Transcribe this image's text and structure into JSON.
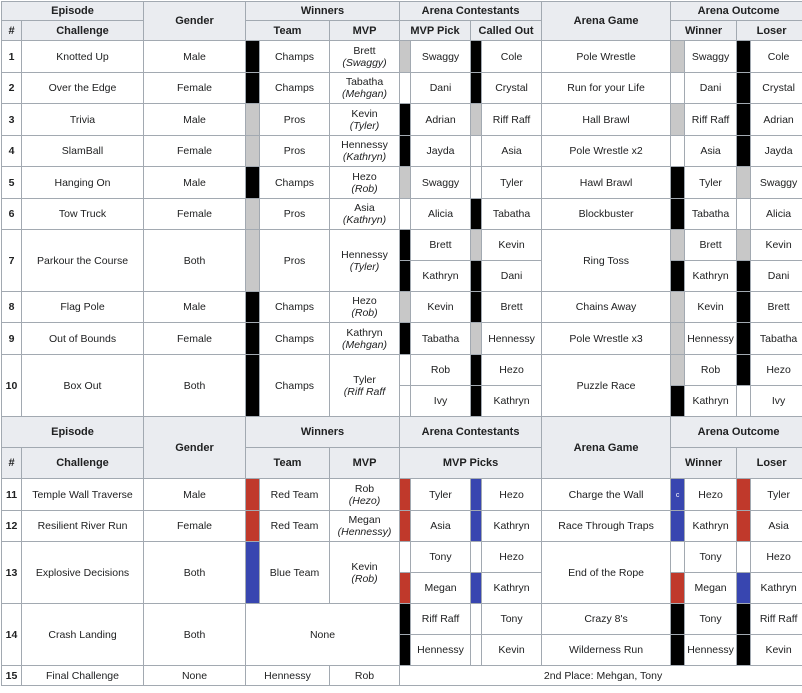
{
  "header1": {
    "episode": "Episode",
    "gender": "Gender",
    "winners": "Winners",
    "arena_contestants": "Arena Contestants",
    "arena_game": "Arena Game",
    "arena_outcome": "Arena Outcome",
    "num": "#",
    "challenge": "Challenge",
    "team": "Team",
    "mvp": "MVP",
    "mvp_pick": "MVP Pick",
    "called_out": "Called Out",
    "winner": "Winner",
    "loser": "Loser"
  },
  "header2": {
    "episode": "Episode",
    "gender": "Gender",
    "winners": "Winners",
    "arena_contestants": "Arena Contestants",
    "arena_game": "Arena Game",
    "arena_outcome": "Arena Outcome",
    "num": "#",
    "challenge": "Challenge",
    "team": "Team",
    "mvp": "MVP",
    "mvp_picks": "MVP Picks",
    "winner": "Winner",
    "loser": "Loser"
  },
  "rows": {
    "r1": {
      "num": "1",
      "challenge": "Knotted Up",
      "gender": "Male",
      "team": "Champs",
      "mvp": "Brett",
      "mvp_sub": "(Swaggy)",
      "pick": "Swaggy",
      "called": "Cole",
      "game": "Pole Wrestle",
      "winner": "Swaggy",
      "loser": "Cole"
    },
    "r2": {
      "num": "2",
      "challenge": "Over the Edge",
      "gender": "Female",
      "team": "Champs",
      "mvp": "Tabatha",
      "mvp_sub": "(Mehgan)",
      "pick": "Dani",
      "called": "Crystal",
      "game": "Run for your Life",
      "winner": "Dani",
      "loser": "Crystal"
    },
    "r3": {
      "num": "3",
      "challenge": "Trivia",
      "gender": "Male",
      "team": "Pros",
      "mvp": "Kevin",
      "mvp_sub": "(Tyler)",
      "pick": "Adrian",
      "called": "Riff Raff",
      "game": "Hall Brawl",
      "winner": "Riff Raff",
      "loser": "Adrian"
    },
    "r4": {
      "num": "4",
      "challenge": "SlamBall",
      "gender": "Female",
      "team": "Pros",
      "mvp": "Hennessy",
      "mvp_sub": "(Kathryn)",
      "pick": "Jayda",
      "called": "Asia",
      "game": "Pole Wrestle x2",
      "winner": "Asia",
      "loser": "Jayda"
    },
    "r5": {
      "num": "5",
      "challenge": "Hanging On",
      "gender": "Male",
      "team": "Champs",
      "mvp": "Hezo",
      "mvp_sub": "(Rob)",
      "pick": "Swaggy",
      "called": "Tyler",
      "game": "Hawl Brawl",
      "winner": "Tyler",
      "loser": "Swaggy"
    },
    "r6": {
      "num": "6",
      "challenge": "Tow Truck",
      "gender": "Female",
      "team": "Pros",
      "mvp": "Asia",
      "mvp_sub": "(Kathryn)",
      "pick": "Alicia",
      "called": "Tabatha",
      "game": "Blockbuster",
      "winner": "Tabatha",
      "loser": "Alicia"
    },
    "r7": {
      "num": "7",
      "challenge": "Parkour the Course",
      "gender": "Both",
      "team": "Pros",
      "mvp": "Hennessy",
      "mvp_sub": "(Tyler)",
      "pick_a": "Brett",
      "called_a": "Kevin",
      "pick_b": "Kathryn",
      "called_b": "Dani",
      "game": "Ring Toss",
      "winner_a": "Brett",
      "loser_a": "Kevin",
      "winner_b": "Kathryn",
      "loser_b": "Dani"
    },
    "r8": {
      "num": "8",
      "challenge": "Flag Pole",
      "gender": "Male",
      "team": "Champs",
      "mvp": "Hezo",
      "mvp_sub": "(Rob)",
      "pick": "Kevin",
      "called": "Brett",
      "game": "Chains Away",
      "winner": "Kevin",
      "loser": "Brett"
    },
    "r9": {
      "num": "9",
      "challenge": "Out of Bounds",
      "gender": "Female",
      "team": "Champs",
      "mvp": "Kathryn",
      "mvp_sub": "(Mehgan)",
      "pick": "Tabatha",
      "called": "Hennessy",
      "game": "Pole Wrestle x3",
      "winner": "Hennessy",
      "loser": "Tabatha"
    },
    "r10": {
      "num": "10",
      "challenge": "Box Out",
      "gender": "Both",
      "team": "Champs",
      "mvp": "Tyler",
      "mvp_sub": "(Riff Raff",
      "pick_a": "Rob",
      "called_a": "Hezo",
      "pick_b": "Ivy",
      "called_b": "Kathryn",
      "game": "Puzzle Race",
      "winner_a": "Rob",
      "loser_a": "Hezo",
      "winner_b": "Kathryn",
      "loser_b": "Ivy"
    },
    "r11": {
      "num": "11",
      "challenge": "Temple Wall Traverse",
      "gender": "Male",
      "team": "Red Team",
      "mvp": "Rob",
      "mvp_sub": "(Hezo)",
      "pick_a": "Tyler",
      "pick_b": "Hezo",
      "game": "Charge the Wall",
      "mark": "c",
      "winner": "Hezo",
      "loser": "Tyler"
    },
    "r12": {
      "num": "12",
      "challenge": "Resilient River Run",
      "gender": "Female",
      "team": "Red Team",
      "mvp": "Megan",
      "mvp_sub": "(Hennessy)",
      "pick_a": "Asia",
      "pick_b": "Kathryn",
      "game": "Race Through Traps",
      "winner": "Kathryn",
      "loser": "Asia"
    },
    "r13": {
      "num": "13",
      "challenge": "Explosive Decisions",
      "gender": "Both",
      "team": "Blue Team",
      "mvp": "Kevin",
      "mvp_sub": "(Rob)",
      "pick_a": "Tony",
      "pick_b": "Hezo",
      "pick_c": "Megan",
      "pick_d": "Kathryn",
      "game": "End of the Rope",
      "winner_a": "Tony",
      "loser_a": "Hezo",
      "winner_b": "Megan",
      "loser_b": "Kathryn"
    },
    "r14": {
      "num": "14",
      "challenge": "Crash Landing",
      "gender": "Both",
      "none": "None",
      "pick_a": "Riff Raff",
      "pick_b": "Tony",
      "pick_c": "Hennessy",
      "pick_d": "Kevin",
      "game_a": "Crazy 8's",
      "game_b": "Wilderness Run",
      "winner_a": "Tony",
      "loser_a": "Riff Raff",
      "winner_b": "Hennessy",
      "loser_b": "Kevin"
    },
    "r15": {
      "num": "15",
      "challenge": "Final Challenge",
      "gender": "None",
      "first": "Hennessy",
      "second_name": "Rob",
      "place": "2nd Place: Mehgan, Tony"
    }
  },
  "colors": {
    "black": "#000000",
    "gray": "#c8c8c8",
    "red": "#c0392b",
    "blue": "#3846b0",
    "header_bg": "#eaecf0",
    "border": "#a2a9b1"
  }
}
